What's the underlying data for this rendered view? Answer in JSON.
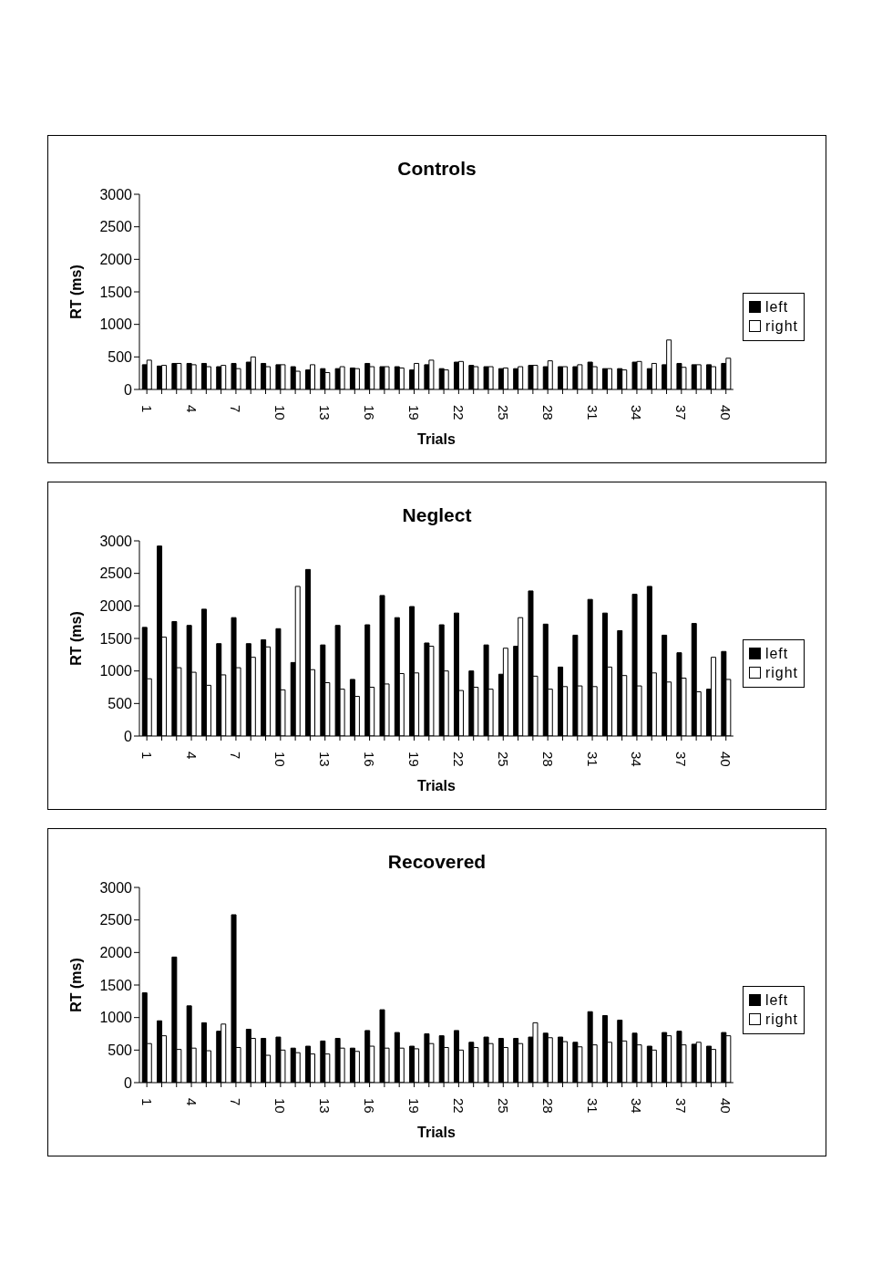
{
  "chart_data": [
    {
      "type": "bar",
      "title": "Controls",
      "xlabel": "Trials",
      "ylabel": "RT (ms)",
      "categories": [
        "1",
        null,
        null,
        "4",
        null,
        null,
        "7",
        null,
        null,
        "10",
        null,
        null,
        "13",
        null,
        null,
        "16",
        null,
        null,
        "19",
        null,
        null,
        "22",
        null,
        null,
        "25",
        null,
        null,
        "28",
        null,
        null,
        "31",
        null,
        null,
        "34",
        null,
        null,
        "37",
        null,
        null,
        "40"
      ],
      "ylim": [
        0,
        3000
      ],
      "yticks": [
        0,
        500,
        1000,
        1500,
        2000,
        2500,
        3000
      ],
      "legend": "right",
      "series": [
        {
          "name": "left",
          "color": "#000000",
          "values": [
            380,
            360,
            400,
            400,
            400,
            350,
            400,
            420,
            400,
            380,
            350,
            300,
            320,
            320,
            330,
            400,
            350,
            350,
            300,
            380,
            320,
            420,
            370,
            350,
            320,
            320,
            370,
            350,
            350,
            350,
            420,
            320,
            320,
            420,
            320,
            380,
            400,
            380,
            380,
            400
          ]
        },
        {
          "name": "right",
          "color": "#ffffff",
          "values": [
            450,
            370,
            400,
            380,
            350,
            370,
            320,
            500,
            350,
            380,
            280,
            380,
            260,
            350,
            320,
            350,
            350,
            330,
            400,
            450,
            300,
            430,
            350,
            350,
            330,
            350,
            370,
            440,
            350,
            380,
            350,
            320,
            300,
            430,
            400,
            760,
            340,
            380,
            350,
            480
          ]
        }
      ]
    },
    {
      "type": "bar",
      "title": "Neglect",
      "xlabel": "Trials",
      "ylabel": "RT (ms)",
      "categories": [
        "1",
        null,
        null,
        "4",
        null,
        null,
        "7",
        null,
        null,
        "10",
        null,
        null,
        "13",
        null,
        null,
        "16",
        null,
        null,
        "19",
        null,
        null,
        "22",
        null,
        null,
        "25",
        null,
        null,
        "28",
        null,
        null,
        "31",
        null,
        null,
        "34",
        null,
        null,
        "37",
        null,
        null,
        "40"
      ],
      "ylim": [
        0,
        3000
      ],
      "yticks": [
        0,
        500,
        1000,
        1500,
        2000,
        2500,
        3000
      ],
      "legend": "right",
      "series": [
        {
          "name": "left",
          "color": "#000000",
          "values": [
            1670,
            2920,
            1760,
            1700,
            1950,
            1420,
            1820,
            1420,
            1480,
            1650,
            1130,
            2560,
            1400,
            1700,
            870,
            1710,
            2160,
            1820,
            1990,
            1430,
            1710,
            1890,
            1000,
            1400,
            950,
            1380,
            2230,
            1720,
            1060,
            1550,
            2100,
            1890,
            1620,
            2180,
            2300,
            1550,
            1280,
            1730,
            720,
            1300
          ]
        },
        {
          "name": "right",
          "color": "#ffffff",
          "values": [
            880,
            1520,
            1050,
            980,
            780,
            940,
            1050,
            1210,
            1370,
            710,
            2300,
            1020,
            820,
            720,
            610,
            750,
            800,
            960,
            970,
            1380,
            1000,
            700,
            750,
            720,
            1350,
            1820,
            920,
            720,
            760,
            770,
            760,
            1060,
            930,
            770,
            970,
            830,
            890,
            680,
            1210,
            870
          ]
        }
      ]
    },
    {
      "type": "bar",
      "title": "Recovered",
      "xlabel": "Trials",
      "ylabel": "RT (ms)",
      "categories": [
        "1",
        null,
        null,
        "4",
        null,
        null,
        "7",
        null,
        null,
        "10",
        null,
        null,
        "13",
        null,
        null,
        "16",
        null,
        null,
        "19",
        null,
        null,
        "22",
        null,
        null,
        "25",
        null,
        null,
        "28",
        null,
        null,
        "31",
        null,
        null,
        "34",
        null,
        null,
        "37",
        null,
        null,
        "40"
      ],
      "ylim": [
        0,
        3000
      ],
      "yticks": [
        0,
        500,
        1000,
        1500,
        2000,
        2500,
        3000
      ],
      "legend": "right",
      "series": [
        {
          "name": "left",
          "color": "#000000",
          "values": [
            1380,
            950,
            1930,
            1180,
            920,
            790,
            2580,
            820,
            680,
            700,
            530,
            560,
            640,
            680,
            530,
            800,
            1120,
            770,
            560,
            750,
            720,
            800,
            620,
            700,
            680,
            680,
            700,
            760,
            700,
            620,
            1090,
            1030,
            960,
            760,
            560,
            770,
            790,
            590,
            560,
            770
          ]
        },
        {
          "name": "right",
          "color": "#ffffff",
          "values": [
            600,
            720,
            510,
            530,
            490,
            900,
            540,
            680,
            420,
            500,
            460,
            440,
            440,
            530,
            480,
            560,
            530,
            530,
            520,
            600,
            540,
            500,
            540,
            600,
            540,
            600,
            920,
            690,
            630,
            550,
            580,
            620,
            640,
            580,
            500,
            720,
            580,
            620,
            510,
            720
          ]
        }
      ]
    }
  ]
}
